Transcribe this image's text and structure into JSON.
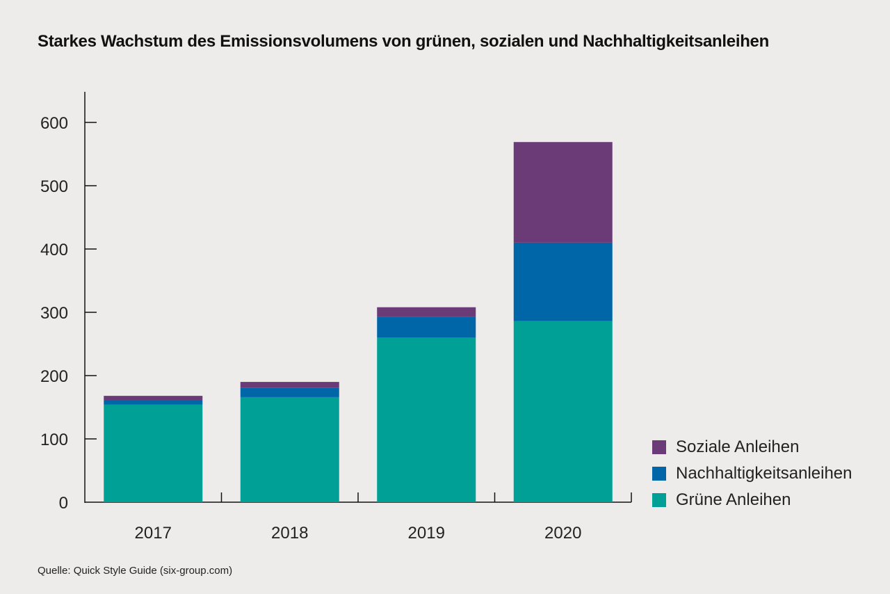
{
  "chart_data": {
    "type": "bar",
    "stacked": true,
    "title": "Starkes Wachstum des Emissionsvolumens von grünen, sozialen und Nachhaltigkeitsanleihen",
    "xlabel": "",
    "ylabel": "",
    "categories": [
      "2017",
      "2018",
      "2019",
      "2020"
    ],
    "ylim": [
      0,
      650
    ],
    "yticks": [
      0,
      100,
      200,
      300,
      400,
      500,
      600
    ],
    "series": [
      {
        "name": "Grüne Anleihen",
        "color": "#00a096",
        "values": [
          154,
          166,
          260,
          286
        ]
      },
      {
        "name": "Nachhaltigkeitsanleihen",
        "color": "#0066a8",
        "values": [
          7,
          15,
          33,
          124
        ]
      },
      {
        "name": "Soziale Anleihen",
        "color": "#6b3b78",
        "values": [
          7,
          9,
          15,
          159
        ]
      }
    ],
    "legend_order": [
      "Soziale Anleihen",
      "Nachhaltigkeitsanleihen",
      "Grüne Anleihen"
    ],
    "legend_position": "bottom-right",
    "grid": false
  },
  "source": "Quelle: Quick Style Guide (six-group.com)"
}
